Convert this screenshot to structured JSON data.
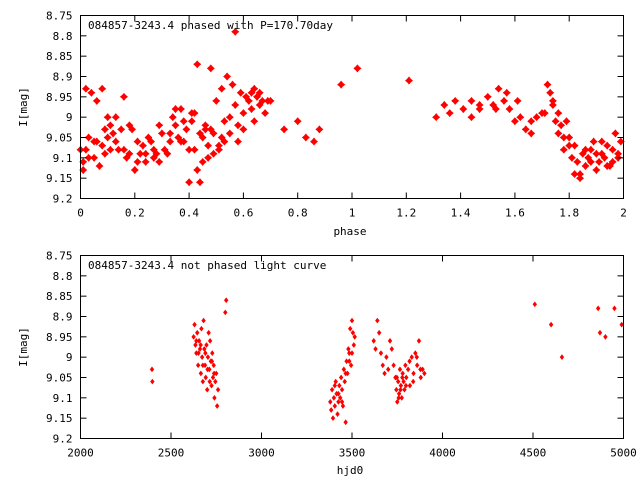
{
  "chart_data": [
    {
      "type": "scatter",
      "title": "084857-3243.4 phased with P=170.70day",
      "xlabel": "phase",
      "ylabel": "I[mag]",
      "xlim": [
        0,
        2
      ],
      "ylim": [
        9.2,
        8.75
      ],
      "y_inverted": true,
      "x_ticks": [
        "0",
        "0.2",
        "0.4",
        "0.6",
        "0.8",
        "1",
        "1.2",
        "1.4",
        "1.6",
        "1.8",
        "2"
      ],
      "y_ticks": [
        "8.75",
        "8.8",
        "8.85",
        "8.9",
        "8.95",
        "9",
        "9.05",
        "9.1",
        "9.15",
        "9.2"
      ],
      "marker": "star",
      "color": "#ff0000",
      "points": [
        [
          0.0,
          9.08
        ],
        [
          0.01,
          9.11
        ],
        [
          0.01,
          9.13
        ],
        [
          0.02,
          8.93
        ],
        [
          0.03,
          9.05
        ],
        [
          0.04,
          8.94
        ],
        [
          0.05,
          9.1
        ],
        [
          0.06,
          9.06
        ],
        [
          0.06,
          8.96
        ],
        [
          0.07,
          9.12
        ],
        [
          0.08,
          9.07
        ],
        [
          0.08,
          8.93
        ],
        [
          0.09,
          9.03
        ],
        [
          0.1,
          9.05
        ],
        [
          0.1,
          9.0
        ],
        [
          0.11,
          9.02
        ],
        [
          0.12,
          9.04
        ],
        [
          0.13,
          9.06
        ],
        [
          0.14,
          9.08
        ],
        [
          0.15,
          9.03
        ],
        [
          0.16,
          8.95
        ],
        [
          0.17,
          9.1
        ],
        [
          0.18,
          9.09
        ],
        [
          0.19,
          9.03
        ],
        [
          0.2,
          9.13
        ],
        [
          0.21,
          9.11
        ],
        [
          0.22,
          9.09
        ],
        [
          0.23,
          9.07
        ],
        [
          0.24,
          9.11
        ],
        [
          0.25,
          9.05
        ],
        [
          0.26,
          9.06
        ],
        [
          0.27,
          9.1
        ],
        [
          0.28,
          9.09
        ],
        [
          0.29,
          9.11
        ],
        [
          0.3,
          9.04
        ],
        [
          0.32,
          9.09
        ],
        [
          0.33,
          9.06
        ],
        [
          0.34,
          9.0
        ],
        [
          0.35,
          9.02
        ],
        [
          0.36,
          9.05
        ],
        [
          0.37,
          8.98
        ],
        [
          0.38,
          9.06
        ],
        [
          0.39,
          9.03
        ],
        [
          0.4,
          9.08
        ],
        [
          0.41,
          9.01
        ],
        [
          0.42,
          8.99
        ],
        [
          0.43,
          9.13
        ],
        [
          0.44,
          9.04
        ],
        [
          0.45,
          9.11
        ],
        [
          0.46,
          9.02
        ],
        [
          0.47,
          9.07
        ],
        [
          0.48,
          9.03
        ],
        [
          0.49,
          9.09
        ],
        [
          0.5,
          8.96
        ],
        [
          0.51,
          9.07
        ],
        [
          0.52,
          8.93
        ],
        [
          0.53,
          9.01
        ],
        [
          0.54,
          8.9
        ],
        [
          0.55,
          9.04
        ],
        [
          0.56,
          8.92
        ],
        [
          0.57,
          8.97
        ],
        [
          0.58,
          9.06
        ],
        [
          0.59,
          8.94
        ],
        [
          0.6,
          8.99
        ],
        [
          0.61,
          8.95
        ],
        [
          0.62,
          8.96
        ],
        [
          0.63,
          8.98
        ],
        [
          0.64,
          8.93
        ],
        [
          0.65,
          8.95
        ],
        [
          0.66,
          8.94
        ],
        [
          0.67,
          8.96
        ],
        [
          0.68,
          8.99
        ],
        [
          0.69,
          8.96
        ],
        [
          0.7,
          8.96
        ],
        [
          0.75,
          9.03
        ],
        [
          0.8,
          9.01
        ],
        [
          0.83,
          9.05
        ],
        [
          0.86,
          9.06
        ],
        [
          0.88,
          9.03
        ],
        [
          0.96,
          8.92
        ],
        [
          1.02,
          8.88
        ],
        [
          1.21,
          8.91
        ],
        [
          1.31,
          9.0
        ],
        [
          1.34,
          8.97
        ],
        [
          1.36,
          8.99
        ],
        [
          1.38,
          8.96
        ],
        [
          1.41,
          8.98
        ],
        [
          1.44,
          8.96
        ],
        [
          1.47,
          8.98
        ],
        [
          1.5,
          8.95
        ],
        [
          1.52,
          8.97
        ],
        [
          1.54,
          8.93
        ],
        [
          1.56,
          8.96
        ],
        [
          1.58,
          8.98
        ],
        [
          1.6,
          9.01
        ],
        [
          1.62,
          9.0
        ],
        [
          1.64,
          9.03
        ],
        [
          1.66,
          9.01
        ],
        [
          1.68,
          9.0
        ],
        [
          1.7,
          8.99
        ],
        [
          1.72,
          8.92
        ],
        [
          1.73,
          8.94
        ],
        [
          1.74,
          8.96
        ],
        [
          1.75,
          9.01
        ],
        [
          1.76,
          9.04
        ],
        [
          1.77,
          9.02
        ],
        [
          1.78,
          9.05
        ],
        [
          1.79,
          9.01
        ],
        [
          1.8,
          9.07
        ],
        [
          1.81,
          9.1
        ],
        [
          1.82,
          9.14
        ],
        [
          1.83,
          9.11
        ],
        [
          1.84,
          9.15
        ],
        [
          1.85,
          9.09
        ],
        [
          1.86,
          9.12
        ],
        [
          1.87,
          9.1
        ],
        [
          1.88,
          9.08
        ],
        [
          1.89,
          9.06
        ],
        [
          1.9,
          9.13
        ],
        [
          1.91,
          9.11
        ],
        [
          1.92,
          9.09
        ],
        [
          1.93,
          9.1
        ],
        [
          1.94,
          9.07
        ],
        [
          1.95,
          9.12
        ],
        [
          1.96,
          9.08
        ],
        [
          1.97,
          9.04
        ],
        [
          1.98,
          9.1
        ],
        [
          1.99,
          9.06
        ],
        [
          0.02,
          9.08
        ],
        [
          0.03,
          9.1
        ],
        [
          0.05,
          9.06
        ],
        [
          0.09,
          9.09
        ],
        [
          0.11,
          9.08
        ],
        [
          0.13,
          9.0
        ],
        [
          0.16,
          9.08
        ],
        [
          0.18,
          9.02
        ],
        [
          0.21,
          9.06
        ],
        [
          0.24,
          9.09
        ],
        [
          0.27,
          9.08
        ],
        [
          0.29,
          9.02
        ],
        [
          0.31,
          9.08
        ],
        [
          0.33,
          9.04
        ],
        [
          0.35,
          8.98
        ],
        [
          0.37,
          9.06
        ],
        [
          0.38,
          9.01
        ],
        [
          0.4,
          9.16
        ],
        [
          0.42,
          9.08
        ],
        [
          0.44,
          9.16
        ],
        [
          0.45,
          9.05
        ],
        [
          0.47,
          9.1
        ],
        [
          0.49,
          9.04
        ],
        [
          0.51,
          9.08
        ],
        [
          0.53,
          9.06
        ],
        [
          0.55,
          9.0
        ],
        [
          0.57,
          8.79
        ],
        [
          0.58,
          9.02
        ],
        [
          0.6,
          9.03
        ],
        [
          0.63,
          8.94
        ],
        [
          0.64,
          9.01
        ],
        [
          0.66,
          8.97
        ],
        [
          1.44,
          9.0
        ],
        [
          1.47,
          8.97
        ],
        [
          1.53,
          8.98
        ],
        [
          1.57,
          8.94
        ],
        [
          1.61,
          8.96
        ],
        [
          1.66,
          9.04
        ],
        [
          1.71,
          8.99
        ],
        [
          1.74,
          8.97
        ],
        [
          1.76,
          8.99
        ],
        [
          1.78,
          9.08
        ],
        [
          1.8,
          9.05
        ],
        [
          1.82,
          9.07
        ],
        [
          1.84,
          9.14
        ],
        [
          1.86,
          9.08
        ],
        [
          1.88,
          9.11
        ],
        [
          1.9,
          9.09
        ],
        [
          1.92,
          9.06
        ],
        [
          1.94,
          9.12
        ],
        [
          1.96,
          9.11
        ],
        [
          1.98,
          9.09
        ],
        [
          0.41,
          8.99
        ],
        [
          0.43,
          8.87
        ],
        [
          0.46,
          9.03
        ],
        [
          0.48,
          8.88
        ],
        [
          0.52,
          9.05
        ]
      ]
    },
    {
      "type": "scatter",
      "title": "084857-3243.4 not phased light curve",
      "xlabel": "hjd0",
      "ylabel": "I[mag]",
      "xlim": [
        2000,
        5000
      ],
      "ylim": [
        9.2,
        8.75
      ],
      "y_inverted": true,
      "x_ticks": [
        "2000",
        "2500",
        "3000",
        "3500",
        "4000",
        "4500",
        "5000"
      ],
      "y_ticks": [
        "8.75",
        "8.8",
        "8.85",
        "8.9",
        "8.95",
        "9",
        "9.05",
        "9.1",
        "9.15",
        "9.2"
      ],
      "marker": "diamond",
      "color": "#ff0000",
      "points": [
        [
          2395,
          9.03
        ],
        [
          2397,
          9.06
        ],
        [
          2625,
          8.95
        ],
        [
          2630,
          8.92
        ],
        [
          2635,
          8.97
        ],
        [
          2640,
          8.99
        ],
        [
          2645,
          8.94
        ],
        [
          2650,
          9.02
        ],
        [
          2655,
          8.96
        ],
        [
          2660,
          8.98
        ],
        [
          2665,
          9.04
        ],
        [
          2668,
          8.93
        ],
        [
          2672,
          9.0
        ],
        [
          2676,
          9.06
        ],
        [
          2680,
          8.91
        ],
        [
          2684,
          8.98
        ],
        [
          2688,
          9.02
        ],
        [
          2692,
          9.05
        ],
        [
          2696,
          8.97
        ],
        [
          2700,
          9.08
        ],
        [
          2704,
          9.0
        ],
        [
          2708,
          8.94
        ],
        [
          2712,
          9.03
        ],
        [
          2716,
          8.96
        ],
        [
          2720,
          9.01
        ],
        [
          2724,
          9.07
        ],
        [
          2728,
          8.99
        ],
        [
          2732,
          9.05
        ],
        [
          2736,
          9.02
        ],
        [
          2740,
          9.1
        ],
        [
          2745,
          9.06
        ],
        [
          2750,
          9.04
        ],
        [
          2755,
          9.12
        ],
        [
          2760,
          9.08
        ],
        [
          2800,
          8.89
        ],
        [
          2805,
          8.86
        ],
        [
          2640,
          8.96
        ],
        [
          2652,
          8.99
        ],
        [
          2664,
          8.97
        ],
        [
          2676,
          9.02
        ],
        [
          2690,
          8.99
        ],
        [
          2702,
          9.03
        ],
        [
          2714,
          9.06
        ],
        [
          2726,
          9.01
        ],
        [
          2738,
          9.04
        ],
        [
          3380,
          9.11
        ],
        [
          3385,
          9.13
        ],
        [
          3390,
          9.08
        ],
        [
          3395,
          9.15
        ],
        [
          3400,
          9.1
        ],
        [
          3405,
          9.12
        ],
        [
          3410,
          9.06
        ],
        [
          3415,
          9.09
        ],
        [
          3420,
          9.14
        ],
        [
          3425,
          9.11
        ],
        [
          3430,
          9.07
        ],
        [
          3435,
          9.1
        ],
        [
          3440,
          9.05
        ],
        [
          3445,
          9.08
        ],
        [
          3450,
          9.12
        ],
        [
          3455,
          9.03
        ],
        [
          3460,
          9.06
        ],
        [
          3465,
          9.16
        ],
        [
          3470,
          9.01
        ],
        [
          3475,
          9.04
        ],
        [
          3480,
          8.98
        ],
        [
          3485,
          8.99
        ],
        [
          3490,
          8.93
        ],
        [
          3495,
          9.02
        ],
        [
          3500,
          8.91
        ],
        [
          3505,
          8.94
        ],
        [
          3510,
          8.97
        ],
        [
          3515,
          8.95
        ],
        [
          3405,
          9.07
        ],
        [
          3425,
          9.09
        ],
        [
          3445,
          9.11
        ],
        [
          3465,
          9.04
        ],
        [
          3485,
          9.01
        ],
        [
          3500,
          8.99
        ],
        [
          3620,
          8.96
        ],
        [
          3630,
          8.98
        ],
        [
          3640,
          8.91
        ],
        [
          3650,
          8.94
        ],
        [
          3660,
          8.99
        ],
        [
          3670,
          9.02
        ],
        [
          3680,
          9.04
        ],
        [
          3690,
          9.0
        ],
        [
          3700,
          9.03
        ],
        [
          3710,
          8.96
        ],
        [
          3720,
          8.98
        ],
        [
          3730,
          9.02
        ],
        [
          3740,
          9.05
        ],
        [
          3745,
          9.08
        ],
        [
          3750,
          9.11
        ],
        [
          3755,
          9.06
        ],
        [
          3760,
          9.09
        ],
        [
          3765,
          9.03
        ],
        [
          3770,
          9.07
        ],
        [
          3775,
          9.1
        ],
        [
          3780,
          9.04
        ],
        [
          3785,
          9.06
        ],
        [
          3790,
          9.08
        ],
        [
          3795,
          9.02
        ],
        [
          3800,
          9.05
        ],
        [
          3810,
          9.03
        ],
        [
          3820,
          9.07
        ],
        [
          3830,
          9.0
        ],
        [
          3840,
          9.04
        ],
        [
          3850,
          8.99
        ],
        [
          3860,
          9.02
        ],
        [
          3870,
          8.96
        ],
        [
          3880,
          9.05
        ],
        [
          3890,
          9.03
        ],
        [
          3900,
          9.04
        ],
        [
          3748,
          9.05
        ],
        [
          3758,
          9.1
        ],
        [
          3768,
          9.08
        ],
        [
          3778,
          9.05
        ],
        [
          3798,
          9.07
        ],
        [
          3818,
          9.01
        ],
        [
          3838,
          9.06
        ],
        [
          3858,
          9.0
        ],
        [
          3878,
          9.03
        ],
        [
          4510,
          8.87
        ],
        [
          4600,
          8.92
        ],
        [
          4660,
          9.0
        ],
        [
          4860,
          8.88
        ],
        [
          4870,
          8.94
        ],
        [
          4900,
          8.95
        ],
        [
          4950,
          8.88
        ],
        [
          4990,
          8.92
        ]
      ]
    }
  ]
}
